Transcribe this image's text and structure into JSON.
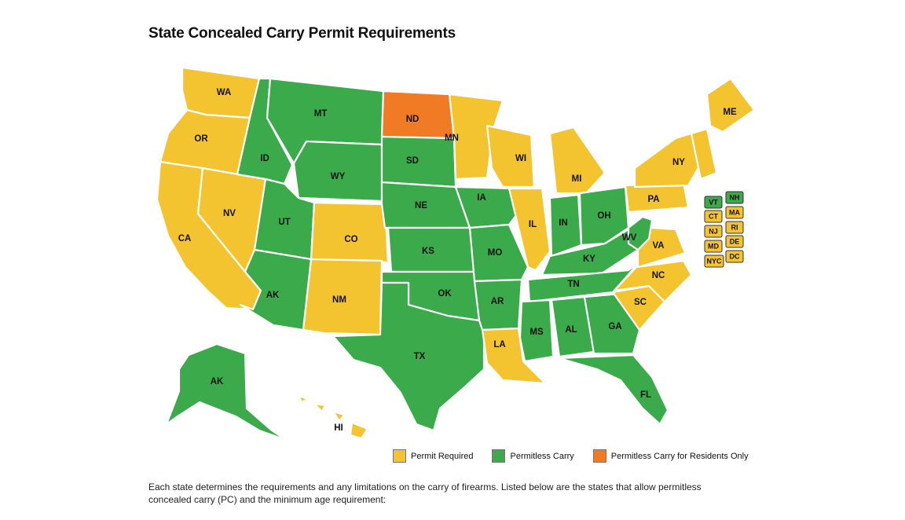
{
  "title": "State Concealed Carry Permit Requirements",
  "colors": {
    "permit_required": "#f4c430",
    "permitless_carry": "#3aaa4a",
    "residents_only": "#f07b24"
  },
  "legend": {
    "permit_required": "Permit Required",
    "permitless_carry": "Permitless Carry",
    "residents_only": "Permitless Carry for Residents Only"
  },
  "states": [
    {
      "code": "WA",
      "status": "permit_required"
    },
    {
      "code": "OR",
      "status": "permit_required"
    },
    {
      "code": "CA",
      "status": "permit_required"
    },
    {
      "code": "NV",
      "status": "permit_required"
    },
    {
      "code": "ID",
      "status": "permitless_carry"
    },
    {
      "code": "MT",
      "status": "permitless_carry"
    },
    {
      "code": "WY",
      "status": "permitless_carry"
    },
    {
      "code": "UT",
      "status": "permitless_carry"
    },
    {
      "code": "CO",
      "status": "permit_required"
    },
    {
      "code": "AK",
      "status": "permitless_carry"
    },
    {
      "code": "NM",
      "status": "permit_required"
    },
    {
      "code": "ND",
      "status": "residents_only"
    },
    {
      "code": "SD",
      "status": "permitless_carry"
    },
    {
      "code": "NE",
      "status": "permitless_carry"
    },
    {
      "code": "KS",
      "status": "permitless_carry"
    },
    {
      "code": "OK",
      "status": "permitless_carry"
    },
    {
      "code": "TX",
      "status": "permitless_carry"
    },
    {
      "code": "MN",
      "status": "permit_required"
    },
    {
      "code": "IA",
      "status": "permitless_carry"
    },
    {
      "code": "MO",
      "status": "permitless_carry"
    },
    {
      "code": "AR",
      "status": "permitless_carry"
    },
    {
      "code": "LA",
      "status": "permit_required"
    },
    {
      "code": "WI",
      "status": "permit_required"
    },
    {
      "code": "IL",
      "status": "permit_required"
    },
    {
      "code": "MI",
      "status": "permit_required"
    },
    {
      "code": "IN",
      "status": "permitless_carry"
    },
    {
      "code": "OH",
      "status": "permitless_carry"
    },
    {
      "code": "KY",
      "status": "permitless_carry"
    },
    {
      "code": "TN",
      "status": "permitless_carry"
    },
    {
      "code": "MS",
      "status": "permitless_carry"
    },
    {
      "code": "AL",
      "status": "permitless_carry"
    },
    {
      "code": "GA",
      "status": "permitless_carry"
    },
    {
      "code": "FL",
      "status": "permitless_carry"
    },
    {
      "code": "SC",
      "status": "permit_required"
    },
    {
      "code": "NC",
      "status": "permit_required"
    },
    {
      "code": "VA",
      "status": "permit_required"
    },
    {
      "code": "WV",
      "status": "permitless_carry"
    },
    {
      "code": "PA",
      "status": "permit_required"
    },
    {
      "code": "NY",
      "status": "permit_required"
    },
    {
      "code": "ME",
      "status": "permit_required"
    },
    {
      "code": "AK",
      "status": "permitless_carry"
    },
    {
      "code": "HI",
      "status": "permit_required"
    }
  ],
  "small_states": [
    {
      "code": "VT",
      "status": "permitless_carry"
    },
    {
      "code": "NH",
      "status": "permitless_carry"
    },
    {
      "code": "CT",
      "status": "permit_required"
    },
    {
      "code": "MA",
      "status": "permit_required"
    },
    {
      "code": "NJ",
      "status": "permit_required"
    },
    {
      "code": "RI",
      "status": "permit_required"
    },
    {
      "code": "MD",
      "status": "permit_required"
    },
    {
      "code": "DE",
      "status": "permit_required"
    },
    {
      "code": "NYC",
      "status": "permit_required"
    },
    {
      "code": "DC",
      "status": "permit_required"
    }
  ],
  "note": "Each state determines the requirements and any limitations on the carry of firearms. Listed below are the states that allow permitless concealed carry (PC) and the minimum age requirement:"
}
